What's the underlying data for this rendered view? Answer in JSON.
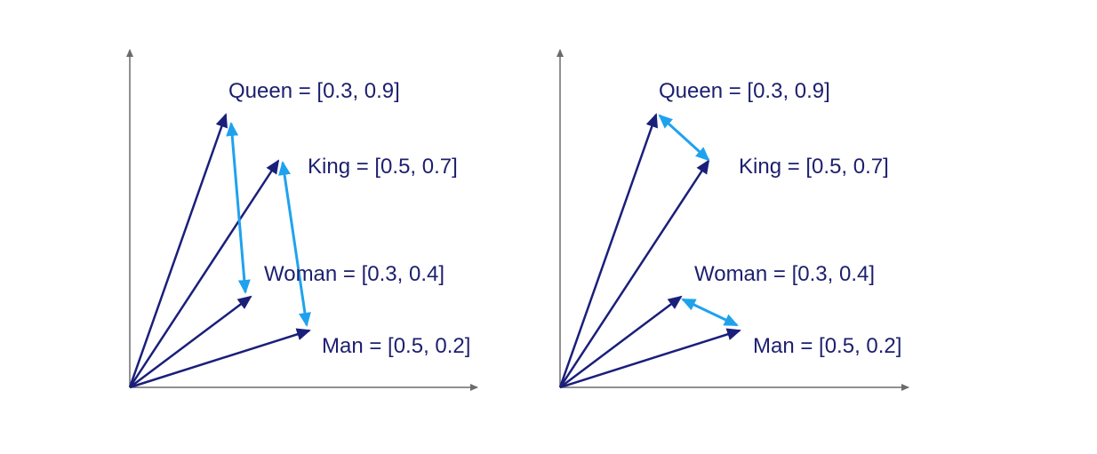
{
  "colors": {
    "axis": "#6b6b6b",
    "vector": "#1a1f7a",
    "difference": "#1fa2ee",
    "label": "#1c1f6e"
  },
  "panels": [
    {
      "name": "left",
      "difference_arrows": "king-woman-spanning",
      "vectors": [
        {
          "word": "Queen",
          "label": "Queen = [0.3, 0.9]",
          "value": [
            0.3,
            0.9
          ]
        },
        {
          "word": "King",
          "label": "King = [0.5, 0.7]",
          "value": [
            0.5,
            0.7
          ]
        },
        {
          "word": "Woman",
          "label": "Woman = [0.3, 0.4]",
          "value": [
            0.3,
            0.4
          ]
        },
        {
          "word": "Man",
          "label": "Man = [0.5, 0.2]",
          "value": [
            0.5,
            0.2
          ]
        }
      ]
    },
    {
      "name": "right",
      "difference_arrows": "queen-king-and-woman-man",
      "vectors": [
        {
          "word": "Queen",
          "label": "Queen = [0.3, 0.9]",
          "value": [
            0.3,
            0.9
          ]
        },
        {
          "word": "King",
          "label": "King = [0.5, 0.7]",
          "value": [
            0.5,
            0.7
          ]
        },
        {
          "word": "Woman",
          "label": "Woman = [0.3, 0.4]",
          "value": [
            0.3,
            0.4
          ]
        },
        {
          "word": "Man",
          "label": "Man = [0.5, 0.2]",
          "value": [
            0.5,
            0.2
          ]
        }
      ]
    }
  ]
}
